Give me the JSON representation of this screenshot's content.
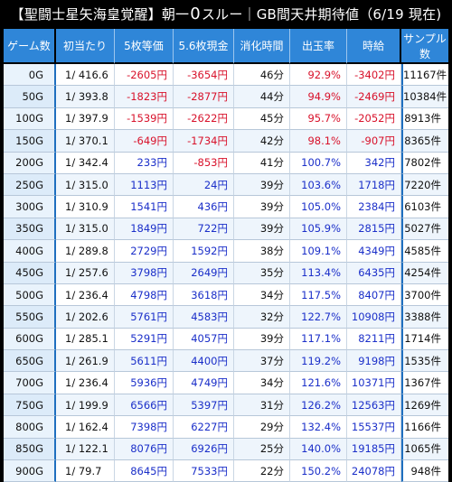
{
  "title": {
    "prefix": "【聖闘士星矢海皇覚醒】朝一",
    "zero": "0",
    "suffix": "スルー｜GB間天井期待値（6/19 現在)"
  },
  "headers": [
    "ゲーム数",
    "初当たり",
    "5枚等価",
    "5.6枚現金",
    "消化時間",
    "出玉率",
    "時給",
    "サンプル数"
  ],
  "rows": [
    {
      "game": "0G",
      "hit": "1/ 416.6",
      "eq5": "-2605円",
      "cash56": "-3654円",
      "time": "46分",
      "rate": "92.9%",
      "wage": "-3402円",
      "samples": "11167件",
      "sign": "neg"
    },
    {
      "game": "50G",
      "hit": "1/ 393.8",
      "eq5": "-1823円",
      "cash56": "-2877円",
      "time": "44分",
      "rate": "94.9%",
      "wage": "-2469円",
      "samples": "10384件",
      "sign": "neg"
    },
    {
      "game": "100G",
      "hit": "1/ 397.9",
      "eq5": "-1539円",
      "cash56": "-2622円",
      "time": "45分",
      "rate": "95.7%",
      "wage": "-2052円",
      "samples": "8913件",
      "sign": "neg"
    },
    {
      "game": "150G",
      "hit": "1/ 370.1",
      "eq5": "-649円",
      "cash56": "-1734円",
      "time": "42分",
      "rate": "98.1%",
      "wage": "-907円",
      "samples": "8365件",
      "sign": "neg"
    },
    {
      "game": "200G",
      "hit": "1/ 342.4",
      "eq5": "233円",
      "cash56": "-853円",
      "time": "41分",
      "rate": "100.7%",
      "wage": "342円",
      "samples": "7802件",
      "sign": "mixed"
    },
    {
      "game": "250G",
      "hit": "1/ 315.0",
      "eq5": "1113円",
      "cash56": "24円",
      "time": "39分",
      "rate": "103.6%",
      "wage": "1718円",
      "samples": "7220件",
      "sign": "pos"
    },
    {
      "game": "300G",
      "hit": "1/ 310.9",
      "eq5": "1541円",
      "cash56": "436円",
      "time": "39分",
      "rate": "105.0%",
      "wage": "2384円",
      "samples": "6103件",
      "sign": "pos"
    },
    {
      "game": "350G",
      "hit": "1/ 315.0",
      "eq5": "1849円",
      "cash56": "722円",
      "time": "39分",
      "rate": "105.9%",
      "wage": "2815円",
      "samples": "5027件",
      "sign": "pos"
    },
    {
      "game": "400G",
      "hit": "1/ 289.8",
      "eq5": "2729円",
      "cash56": "1592円",
      "time": "38分",
      "rate": "109.1%",
      "wage": "4349円",
      "samples": "4585件",
      "sign": "pos"
    },
    {
      "game": "450G",
      "hit": "1/ 257.6",
      "eq5": "3798円",
      "cash56": "2649円",
      "time": "35分",
      "rate": "113.4%",
      "wage": "6435円",
      "samples": "4254件",
      "sign": "pos"
    },
    {
      "game": "500G",
      "hit": "1/ 236.4",
      "eq5": "4798円",
      "cash56": "3618円",
      "time": "34分",
      "rate": "117.5%",
      "wage": "8407円",
      "samples": "3700件",
      "sign": "pos"
    },
    {
      "game": "550G",
      "hit": "1/ 202.6",
      "eq5": "5761円",
      "cash56": "4583円",
      "time": "32分",
      "rate": "122.7%",
      "wage": "10908円",
      "samples": "3388件",
      "sign": "pos"
    },
    {
      "game": "600G",
      "hit": "1/ 285.1",
      "eq5": "5291円",
      "cash56": "4057円",
      "time": "39分",
      "rate": "117.1%",
      "wage": "8211円",
      "samples": "1714件",
      "sign": "pos"
    },
    {
      "game": "650G",
      "hit": "1/ 261.9",
      "eq5": "5611円",
      "cash56": "4400円",
      "time": "37分",
      "rate": "119.2%",
      "wage": "9198円",
      "samples": "1535件",
      "sign": "pos"
    },
    {
      "game": "700G",
      "hit": "1/ 236.4",
      "eq5": "5936円",
      "cash56": "4749円",
      "time": "34分",
      "rate": "121.6%",
      "wage": "10371円",
      "samples": "1367件",
      "sign": "pos"
    },
    {
      "game": "750G",
      "hit": "1/ 199.9",
      "eq5": "6566円",
      "cash56": "5397円",
      "time": "31分",
      "rate": "126.2%",
      "wage": "12563円",
      "samples": "1269件",
      "sign": "pos"
    },
    {
      "game": "800G",
      "hit": "1/ 162.4",
      "eq5": "7398円",
      "cash56": "6227円",
      "time": "29分",
      "rate": "132.4%",
      "wage": "15537円",
      "samples": "1166件",
      "sign": "pos"
    },
    {
      "game": "850G",
      "hit": "1/ 122.1",
      "eq5": "8076円",
      "cash56": "6926円",
      "time": "25分",
      "rate": "140.0%",
      "wage": "19185円",
      "samples": "1065件",
      "sign": "pos"
    },
    {
      "game": "900G",
      "hit": "1/ 79.7",
      "eq5": "8645円",
      "cash56": "7533円",
      "time": "22分",
      "rate": "150.2%",
      "wage": "24078円",
      "samples": "948件",
      "sign": "pos"
    }
  ],
  "colors": {
    "header_bg": "#2f86d8",
    "positive": "#1b2fc9",
    "negative": "#d8122b"
  }
}
